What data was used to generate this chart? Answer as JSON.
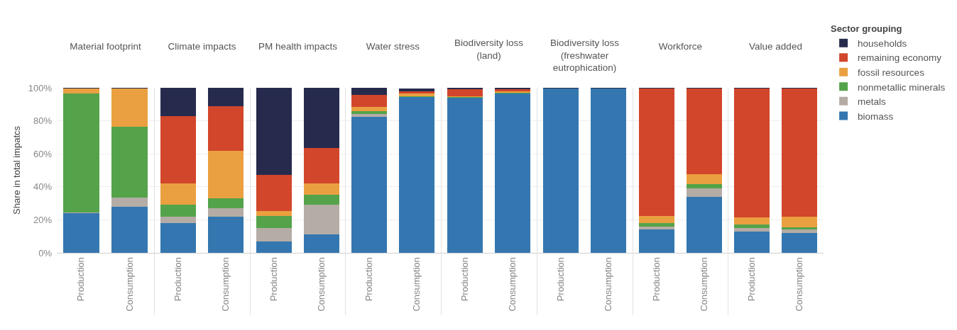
{
  "chart_data": [
    {
      "type": "bar",
      "stacked": true,
      "title": "Material footprint",
      "ylabel": "Share in total impatcs",
      "categories": [
        "Production",
        "Consumption"
      ],
      "ylim": [
        0,
        100
      ],
      "yticks": [
        {
          "value": 0,
          "label": "0%"
        },
        {
          "value": 20,
          "label": "20%"
        },
        {
          "value": 40,
          "label": "40%"
        },
        {
          "value": 60,
          "label": "60%"
        },
        {
          "value": 80,
          "label": "80%"
        },
        {
          "value": 100,
          "label": "100%"
        }
      ],
      "grid": "y",
      "legend": false,
      "series": [
        {
          "color": "#3477b0",
          "values": [
            24,
            28
          ]
        },
        {
          "color": "#b5aca6",
          "values": [
            0.5,
            5.5
          ]
        },
        {
          "color": "#54a34a",
          "values": [
            72,
            43
          ]
        },
        {
          "color": "#eaa040",
          "values": [
            3,
            23
          ]
        },
        {
          "color": "#d2462b",
          "values": [
            0,
            0
          ]
        },
        {
          "color": "#262b4d",
          "values": [
            0.5,
            0.5
          ]
        }
      ]
    },
    {
      "type": "bar",
      "stacked": true,
      "title": "Climate impacts",
      "categories": [
        "Production",
        "Consumption"
      ],
      "ylim": [
        0,
        100
      ],
      "yticks": [
        {
          "value": 0,
          "label": null
        },
        {
          "value": 20,
          "label": null
        },
        {
          "value": 40,
          "label": null
        },
        {
          "value": 60,
          "label": null
        },
        {
          "value": 80,
          "label": null
        },
        {
          "value": 100,
          "label": null
        }
      ],
      "grid": "y",
      "legend": false,
      "tick_labels": "x",
      "series": [
        {
          "color": "#3477b0",
          "values": [
            18,
            22
          ]
        },
        {
          "color": "#b5aca6",
          "values": [
            4,
            5
          ]
        },
        {
          "color": "#54a34a",
          "values": [
            7,
            6
          ]
        },
        {
          "color": "#eaa040",
          "values": [
            13,
            29
          ]
        },
        {
          "color": "#d2462b",
          "values": [
            41,
            27
          ]
        },
        {
          "color": "#262b4d",
          "values": [
            17,
            11
          ]
        }
      ]
    },
    {
      "type": "bar",
      "stacked": true,
      "title": "PM health impacts",
      "categories": [
        "Production",
        "Consumption"
      ],
      "ylim": [
        0,
        100
      ],
      "yticks": [
        {
          "value": 0,
          "label": null
        },
        {
          "value": 20,
          "label": null
        },
        {
          "value": 40,
          "label": null
        },
        {
          "value": 60,
          "label": null
        },
        {
          "value": 80,
          "label": null
        },
        {
          "value": 100,
          "label": null
        }
      ],
      "grid": "y",
      "legend": false,
      "tick_labels": "x",
      "series": [
        {
          "color": "#3477b0",
          "values": [
            7,
            11
          ]
        },
        {
          "color": "#b5aca6",
          "values": [
            8,
            18
          ]
        },
        {
          "color": "#54a34a",
          "values": [
            7.5,
            6
          ]
        },
        {
          "color": "#eaa040",
          "values": [
            3,
            7
          ]
        },
        {
          "color": "#d2462b",
          "values": [
            21.5,
            21.5
          ]
        },
        {
          "color": "#262b4d",
          "values": [
            53,
            36.5
          ]
        }
      ]
    },
    {
      "type": "bar",
      "stacked": true,
      "title": "Water stress",
      "categories": [
        "Production",
        "Consumption"
      ],
      "ylim": [
        0,
        100
      ],
      "yticks": [
        {
          "value": 0,
          "label": null
        },
        {
          "value": 20,
          "label": null
        },
        {
          "value": 40,
          "label": null
        },
        {
          "value": 60,
          "label": null
        },
        {
          "value": 80,
          "label": null
        },
        {
          "value": 100,
          "label": null
        }
      ],
      "grid": "y",
      "legend": false,
      "tick_labels": "x",
      "series": [
        {
          "color": "#3477b0",
          "values": [
            82.5,
            94.5
          ]
        },
        {
          "color": "#b5aca6",
          "values": [
            1.5,
            null
          ]
        },
        {
          "color": "#54a34a",
          "values": [
            2,
            0.5
          ]
        },
        {
          "color": "#eaa040",
          "values": [
            2.5,
            1.5
          ]
        },
        {
          "color": "#d2462b",
          "values": [
            7,
            1.5
          ]
        },
        {
          "color": "#262b4d",
          "values": [
            4.5,
            1.5
          ]
        }
      ]
    },
    {
      "type": "bar",
      "stacked": true,
      "title": "Biodiversity loss (land)",
      "categories": [
        "Production",
        "Consumption"
      ],
      "ylim": [
        0,
        100
      ],
      "yticks": [
        {
          "value": 0,
          "label": null
        },
        {
          "value": 20,
          "label": null
        },
        {
          "value": 40,
          "label": null
        },
        {
          "value": 60,
          "label": null
        },
        {
          "value": 80,
          "label": null
        },
        {
          "value": 100,
          "label": null
        }
      ],
      "grid": "y",
      "legend": false,
      "tick_labels": "x",
      "series": [
        {
          "color": "#3477b0",
          "values": [
            94,
            96.7
          ]
        },
        {
          "color": "#b5aca6",
          "values": [
            null,
            null
          ]
        },
        {
          "color": "#54a34a",
          "values": [
            0.3,
            0.5
          ]
        },
        {
          "color": "#eaa040",
          "values": [
            0.5,
            0.5
          ]
        },
        {
          "color": "#d2462b",
          "values": [
            4.5,
            1.5
          ]
        },
        {
          "color": "#262b4d",
          "values": [
            0.5,
            0.6
          ]
        }
      ]
    },
    {
      "type": "bar",
      "stacked": true,
      "title": "Biodiversity loss (freshwater eutrophication)",
      "categories": [
        "Production",
        "Consumption"
      ],
      "ylim": [
        0,
        100
      ],
      "yticks": [
        {
          "value": 0,
          "label": null
        },
        {
          "value": 20,
          "label": null
        },
        {
          "value": 40,
          "label": null
        },
        {
          "value": 60,
          "label": null
        },
        {
          "value": 80,
          "label": null
        },
        {
          "value": 100,
          "label": null
        }
      ],
      "grid": "y",
      "legend": false,
      "tick_labels": "x",
      "series": [
        {
          "color": "#3477b0",
          "values": [
            99.4,
            99.4
          ]
        },
        {
          "color": "#b5aca6",
          "values": [
            0,
            0
          ]
        },
        {
          "color": "#54a34a",
          "values": [
            0,
            0
          ]
        },
        {
          "color": "#eaa040",
          "values": [
            0,
            0
          ]
        },
        {
          "color": "#d2462b",
          "values": [
            0,
            0
          ]
        },
        {
          "color": "#262b4d",
          "values": [
            0.6,
            0.6
          ]
        }
      ]
    },
    {
      "type": "bar",
      "stacked": true,
      "title": "Workforce",
      "categories": [
        "Production",
        "Consumption"
      ],
      "ylim": [
        0,
        100
      ],
      "yticks": [
        {
          "value": 0,
          "label": null
        },
        {
          "value": 20,
          "label": null
        },
        {
          "value": 40,
          "label": null
        },
        {
          "value": 60,
          "label": null
        },
        {
          "value": 80,
          "label": null
        },
        {
          "value": 100,
          "label": null
        }
      ],
      "grid": "y",
      "legend": false,
      "tick_labels": "x",
      "series": [
        {
          "color": "#3477b0",
          "values": [
            14,
            34
          ]
        },
        {
          "color": "#b5aca6",
          "values": [
            2,
            5
          ]
        },
        {
          "color": "#54a34a",
          "values": [
            2,
            2.5
          ]
        },
        {
          "color": "#eaa040",
          "values": [
            4.5,
            6
          ]
        },
        {
          "color": "#d2462b",
          "values": [
            77,
            52
          ]
        },
        {
          "color": "#262b4d",
          "values": [
            0.5,
            0.5
          ]
        }
      ]
    },
    {
      "type": "bar",
      "stacked": true,
      "title": "Value added",
      "categories": [
        "Production",
        "Consumption"
      ],
      "ylim": [
        0,
        100
      ],
      "yticks": [
        {
          "value": 0,
          "label": null
        },
        {
          "value": 20,
          "label": null
        },
        {
          "value": 40,
          "label": null
        },
        {
          "value": 60,
          "label": null
        },
        {
          "value": 80,
          "label": null
        },
        {
          "value": 100,
          "label": null
        }
      ],
      "grid": "y",
      "legend": "right",
      "legend_title": "Sector grouping",
      "tick_labels": "x",
      "series": [
        {
          "name": "biomass",
          "color": "#3477b0",
          "values": [
            13,
            12
          ]
        },
        {
          "name": "metals",
          "color": "#b5aca6",
          "values": [
            2,
            2
          ]
        },
        {
          "name": "nonmetallic minerals",
          "color": "#54a34a",
          "values": [
            2,
            1.5
          ]
        },
        {
          "name": "fossil resources",
          "color": "#eaa040",
          "values": [
            4.5,
            6.5
          ]
        },
        {
          "name": "remaining economy",
          "color": "#d2462b",
          "values": [
            78,
            77.5
          ]
        },
        {
          "name": "households",
          "color": "#262b4d",
          "values": [
            0.5,
            0.5
          ]
        }
      ]
    }
  ]
}
